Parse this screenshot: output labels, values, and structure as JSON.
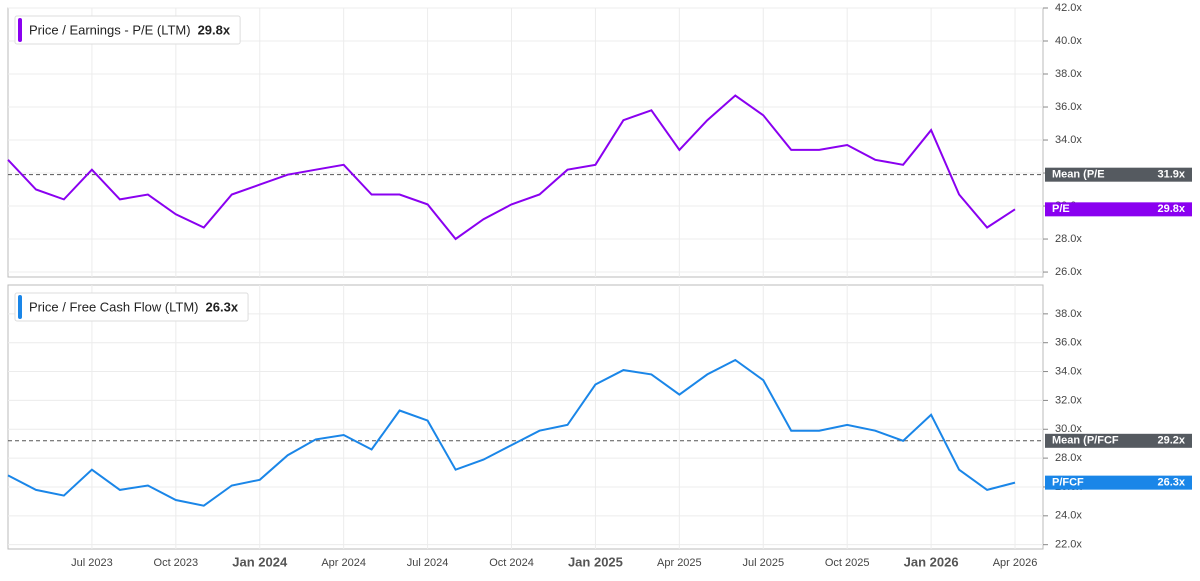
{
  "chart_data": [
    {
      "type": "line",
      "x": [
        "2023-04",
        "2023-05",
        "2023-06",
        "2023-07",
        "2023-08",
        "2023-09",
        "2023-10",
        "2023-11",
        "2023-12",
        "2024-01",
        "2024-02",
        "2024-03",
        "2024-04",
        "2024-05",
        "2024-06",
        "2024-07",
        "2024-08",
        "2024-09",
        "2024-10",
        "2024-11",
        "2024-12",
        "2025-01",
        "2025-02",
        "2025-03",
        "2025-04",
        "2025-05",
        "2025-06",
        "2025-07",
        "2025-08",
        "2025-09",
        "2025-10",
        "2025-11",
        "2025-12",
        "2026-01",
        "2026-02",
        "2026-03",
        "2026-04"
      ],
      "xlim": [
        "2023-04",
        "2026-05"
      ],
      "series": [
        {
          "name": "Price / Earnings - P/E (LTM)",
          "badge": "P/E",
          "color": "#8a00f0",
          "values": [
            32.8,
            31.0,
            30.4,
            32.2,
            30.4,
            30.7,
            29.5,
            28.7,
            30.7,
            31.3,
            31.9,
            32.2,
            32.5,
            30.7,
            30.7,
            30.1,
            28.0,
            29.2,
            30.1,
            30.7,
            32.2,
            32.5,
            35.2,
            35.8,
            33.4,
            35.2,
            36.7,
            35.5,
            33.4,
            33.4,
            33.7,
            32.8,
            32.5,
            34.6,
            30.7,
            28.7,
            29.8
          ],
          "last_value": {
            "value": 29.8,
            "label": "29.8x"
          }
        }
      ],
      "mean": {
        "name": "Mean (P/E",
        "value": 31.9,
        "label": "31.9x"
      },
      "ylim": [
        25.7,
        42
      ],
      "yticks": [
        {
          "value": 26,
          "label": "26.0x"
        },
        {
          "value": 28,
          "label": "28.0x"
        },
        {
          "value": 30,
          "label": "30.0x"
        },
        {
          "value": 32,
          "label": "32.0x"
        },
        {
          "value": 34,
          "label": "34.0x"
        },
        {
          "value": 36,
          "label": "36.0x"
        },
        {
          "value": 38,
          "label": "38.0x"
        },
        {
          "value": 40,
          "label": "40.0x"
        },
        {
          "value": 42,
          "label": "42.0x"
        }
      ],
      "grid": true
    },
    {
      "type": "line",
      "x": [
        "2023-04",
        "2023-05",
        "2023-06",
        "2023-07",
        "2023-08",
        "2023-09",
        "2023-10",
        "2023-11",
        "2023-12",
        "2024-01",
        "2024-02",
        "2024-03",
        "2024-04",
        "2024-05",
        "2024-06",
        "2024-07",
        "2024-08",
        "2024-09",
        "2024-10",
        "2024-11",
        "2024-12",
        "2025-01",
        "2025-02",
        "2025-03",
        "2025-04",
        "2025-05",
        "2025-06",
        "2025-07",
        "2025-08",
        "2025-09",
        "2025-10",
        "2025-11",
        "2025-12",
        "2026-01",
        "2026-02",
        "2026-03",
        "2026-04"
      ],
      "xlim": [
        "2023-04",
        "2026-05"
      ],
      "xticks": [
        {
          "value": "2023-07",
          "label": "Jul 2023"
        },
        {
          "value": "2023-10",
          "label": "Oct 2023"
        },
        {
          "value": "2024-01",
          "label": "Jan 2024"
        },
        {
          "value": "2024-04",
          "label": "Apr 2024"
        },
        {
          "value": "2024-07",
          "label": "Jul 2024"
        },
        {
          "value": "2024-10",
          "label": "Oct 2024"
        },
        {
          "value": "2025-01",
          "label": "Jan 2025"
        },
        {
          "value": "2025-04",
          "label": "Apr 2025"
        },
        {
          "value": "2025-07",
          "label": "Jul 2025"
        },
        {
          "value": "2025-10",
          "label": "Oct 2025"
        },
        {
          "value": "2026-01",
          "label": "Jan 2026"
        },
        {
          "value": "2026-04",
          "label": "Apr 2026"
        }
      ],
      "series": [
        {
          "name": "Price / Free Cash Flow (LTM)",
          "badge": "P/FCF",
          "color": "#1a86e8",
          "values": [
            26.8,
            25.8,
            25.4,
            27.2,
            25.8,
            26.1,
            25.1,
            24.7,
            26.1,
            26.5,
            28.2,
            29.3,
            29.6,
            28.6,
            31.3,
            30.6,
            27.2,
            27.9,
            28.9,
            29.9,
            30.3,
            33.1,
            34.1,
            33.8,
            32.4,
            33.8,
            34.8,
            33.4,
            29.9,
            29.9,
            30.3,
            29.9,
            29.2,
            31.0,
            27.2,
            25.8,
            26.3
          ],
          "last_value": {
            "value": 26.3,
            "label": "26.3x"
          }
        }
      ],
      "mean": {
        "name": "Mean (P/FCF",
        "value": 29.2,
        "label": "29.2x"
      },
      "ylim": [
        21.7,
        40
      ],
      "yticks": [
        {
          "value": 22,
          "label": "22.0x"
        },
        {
          "value": 24,
          "label": "24.0x"
        },
        {
          "value": 26,
          "label": "26.0x"
        },
        {
          "value": 28,
          "label": "28.0x"
        },
        {
          "value": 30,
          "label": "30.0x"
        },
        {
          "value": 32,
          "label": "32.0x"
        },
        {
          "value": 34,
          "label": "34.0x"
        },
        {
          "value": 36,
          "label": "36.0x"
        },
        {
          "value": 38,
          "label": "38.0x"
        }
      ],
      "grid": true
    }
  ]
}
